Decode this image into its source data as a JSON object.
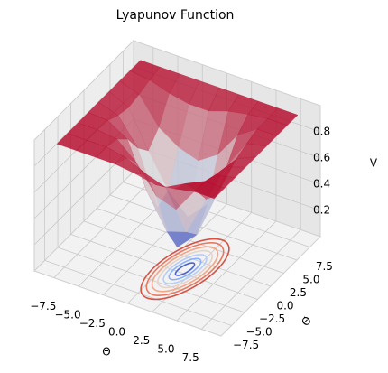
{
  "chart_data": {
    "type": "surface3d",
    "title": "Lyapunov Function",
    "xlabel": "Θ",
    "ylabel": "Θ̇",
    "zlabel": "V",
    "colormap": "coolwarm",
    "x": [
      -8,
      -6,
      -4,
      -2,
      0,
      2,
      4,
      6,
      8
    ],
    "y": [
      -8,
      -6,
      -4,
      -2,
      0,
      2,
      4,
      6,
      8
    ],
    "z": [
      [
        0.95,
        0.95,
        0.95,
        0.95,
        0.93,
        0.9,
        0.92,
        0.95,
        0.95
      ],
      [
        0.95,
        0.95,
        0.95,
        0.92,
        0.85,
        0.8,
        0.88,
        0.95,
        0.95
      ],
      [
        0.95,
        0.95,
        0.93,
        0.8,
        0.6,
        0.55,
        0.75,
        0.92,
        0.95
      ],
      [
        0.95,
        0.94,
        0.85,
        0.5,
        0.25,
        0.3,
        0.6,
        0.9,
        0.95
      ],
      [
        0.95,
        0.9,
        0.7,
        0.3,
        0.05,
        0.2,
        0.55,
        0.88,
        0.95
      ],
      [
        0.95,
        0.88,
        0.6,
        0.35,
        0.2,
        0.35,
        0.7,
        0.92,
        0.95
      ],
      [
        0.95,
        0.9,
        0.7,
        0.6,
        0.55,
        0.65,
        0.85,
        0.95,
        0.95
      ],
      [
        0.95,
        0.93,
        0.88,
        0.85,
        0.85,
        0.9,
        0.93,
        0.95,
        0.95
      ],
      [
        0.95,
        0.95,
        0.95,
        0.95,
        0.95,
        0.95,
        0.95,
        0.95,
        0.95
      ]
    ],
    "xlim": [
      -9.5,
      9.5
    ],
    "ylim": [
      -9.5,
      9.5
    ],
    "zlim": [
      0,
      1
    ],
    "xticks": [
      {
        "value": -7.5,
        "label": "−7.5"
      },
      {
        "value": -5,
        "label": "−5.0"
      },
      {
        "value": -2.5,
        "label": "−2.5"
      },
      {
        "value": 0,
        "label": "0.0"
      },
      {
        "value": 2.5,
        "label": "2.5"
      },
      {
        "value": 5,
        "label": "5.0"
      },
      {
        "value": 7.5,
        "label": "7.5"
      }
    ],
    "yticks": [
      {
        "value": -7.5,
        "label": "−7.5"
      },
      {
        "value": -5,
        "label": "−5.0"
      },
      {
        "value": -2.5,
        "label": "−2.5"
      },
      {
        "value": 0,
        "label": "0.0"
      },
      {
        "value": 2.5,
        "label": "2.5"
      },
      {
        "value": 5,
        "label": "5.0"
      },
      {
        "value": 7.5,
        "label": "7.5"
      }
    ],
    "zticks": [
      0.2,
      0.4,
      0.6,
      0.8
    ],
    "grid": true
  }
}
